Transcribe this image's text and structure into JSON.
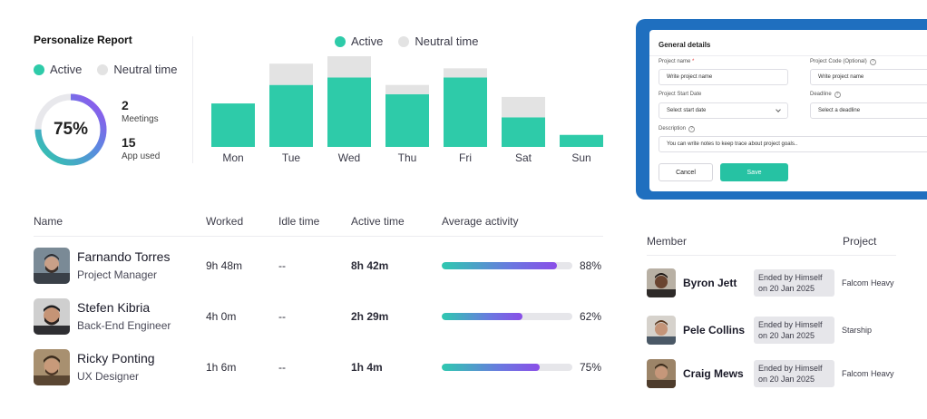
{
  "report": {
    "title": "Personalize Report",
    "legend": [
      {
        "label": "Active",
        "color": "#2ecba9"
      },
      {
        "label": "Neutral time",
        "color": "#e3e3e3"
      }
    ],
    "donut_value": "75%",
    "donut_fraction": 0.75,
    "meetings_count": "2",
    "meetings_label": "Meetings",
    "apps_count": "15",
    "apps_label": "App used"
  },
  "chart_data": {
    "type": "bar",
    "stacked": true,
    "categories": [
      "Mon",
      "Tue",
      "Wed",
      "Thu",
      "Fri",
      "Sat",
      "Sun"
    ],
    "series": [
      {
        "name": "Active",
        "color": "#2ecba9",
        "values": [
          47,
          67,
          75,
          57,
          75,
          32,
          13
        ]
      },
      {
        "name": "Neutral time",
        "color": "#e3e3e3",
        "values": [
          0,
          23,
          23,
          10,
          10,
          22,
          0
        ]
      }
    ],
    "ylim": [
      0,
      100
    ],
    "grid": false,
    "legend": "top-center"
  },
  "modal": {
    "title": "General details",
    "project_name_label": "Project name",
    "project_name_placeholder": "Write project name",
    "project_code_label": "Project Code (Optional)",
    "project_code_placeholder": "Write project name",
    "start_date_label": "Project Start Date",
    "start_date_placeholder": "Select start date",
    "deadline_label": "Deadline",
    "deadline_placeholder": "Select a deadline",
    "description_label": "Description",
    "description_placeholder": "You can write notes to keep trace about project goals..",
    "cancel_label": "Cancel",
    "save_label": "Save",
    "frame_color": "#1f6fbf",
    "save_color": "#26c2a3"
  },
  "activity_table": {
    "headers": [
      "Name",
      "Worked",
      "Idle time",
      "Active time",
      "Average activity"
    ],
    "rows": [
      {
        "name": "Farnando Torres",
        "role": "Project Manager",
        "worked": "9h 48m",
        "idle": "--",
        "active": "8h 42m",
        "activity_pct": "88%",
        "activity": 0.88
      },
      {
        "name": "Stefen Kibria",
        "role": "Back-End Engineer",
        "worked": "4h 0m",
        "idle": "--",
        "active": "2h 29m",
        "activity_pct": "62%",
        "activity": 0.62
      },
      {
        "name": "Ricky Ponting",
        "role": "UX Designer",
        "worked": "1h 6m",
        "idle": "--",
        "active": "1h 4m",
        "activity_pct": "75%",
        "activity": 0.75
      }
    ]
  },
  "member_table": {
    "headers": [
      "Member",
      "Project"
    ],
    "rows": [
      {
        "name": "Byron Jett",
        "status_line1": "Ended by Himself",
        "status_line2": "on 20 Jan 2025",
        "project": "Falcom Heavy"
      },
      {
        "name": "Pele Collins",
        "status_line1": "Ended by Himself",
        "status_line2": "on 20 Jan 2025",
        "project": "Starship"
      },
      {
        "name": "Craig Mews",
        "status_line1": "Ended by Himself",
        "status_line2": "on 20 Jan 2025",
        "project": "Falcom Heavy"
      }
    ]
  }
}
